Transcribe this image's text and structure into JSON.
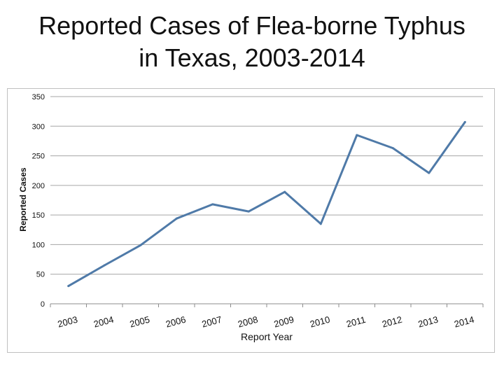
{
  "slide": {
    "title_line1": "Reported Cases of Flea-borne Typhus",
    "title_line2": "in Texas, 2003-2014"
  },
  "colors": {
    "line": "#4f7aa8",
    "grid": "#a6a6a6",
    "axis": "#8c8c8c"
  },
  "chart_data": {
    "type": "line",
    "title": "Reported Cases of Flea-borne Typhus in Texas, 2003-2014",
    "xlabel": "Report Year",
    "ylabel": "Reported Cases",
    "categories": [
      "2003",
      "2004",
      "2005",
      "2006",
      "2007",
      "2008",
      "2009",
      "2010",
      "2011",
      "2012",
      "2013",
      "2014"
    ],
    "series": [
      {
        "values": [
          30,
          65,
          99,
          144,
          168,
          156,
          189,
          135,
          285,
          263,
          221,
          307
        ]
      }
    ],
    "ylim": [
      0,
      350
    ],
    "yticks": [
      0,
      50,
      100,
      150,
      200,
      250,
      300,
      350
    ],
    "grid": true,
    "legend": "none"
  }
}
